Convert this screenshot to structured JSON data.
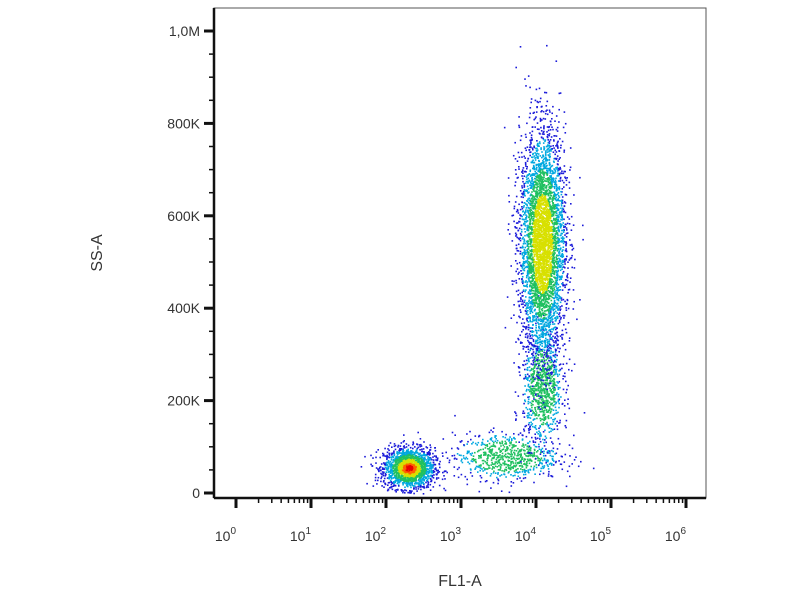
{
  "chart_data": {
    "type": "scatter",
    "title": "",
    "xlabel": "FL1-A",
    "ylabel": "SS-A",
    "x_scale": "log",
    "xlim": [
      0.3,
      1000000
    ],
    "ylim": [
      0,
      1000000
    ],
    "x_ticks": [
      {
        "base": "10",
        "exp": "0",
        "value": 1
      },
      {
        "base": "10",
        "exp": "1",
        "value": 10
      },
      {
        "base": "10",
        "exp": "2",
        "value": 100
      },
      {
        "base": "10",
        "exp": "3",
        "value": 1000
      },
      {
        "base": "10",
        "exp": "4",
        "value": 10000
      },
      {
        "base": "10",
        "exp": "5",
        "value": 100000
      },
      {
        "base": "10",
        "exp": "6",
        "value": 1000000
      }
    ],
    "y_ticks": [
      {
        "label": "0",
        "value": 0
      },
      {
        "label": "200K",
        "value": 200000
      },
      {
        "label": "400K",
        "value": 400000
      },
      {
        "label": "600K",
        "value": 600000
      },
      {
        "label": "800K",
        "value": 800000
      },
      {
        "label": "1,0M",
        "value": 1000000
      }
    ],
    "density_colors": [
      "#1a1ad9",
      "#00a8e0",
      "#20c060",
      "#d8e000",
      "#ff6000",
      "#e80000"
    ],
    "populations": [
      {
        "x_center": 200,
        "y_center": 55000,
        "x_spread_log": 0.17,
        "y_spread": 22000,
        "count": 1800
      },
      {
        "x_center": 4000,
        "y_center": 80000,
        "x_spread_log": 0.35,
        "y_spread": 25000,
        "count": 700
      },
      {
        "x_center": 12000,
        "y_center": 230000,
        "x_spread_log": 0.13,
        "y_spread": 60000,
        "count": 900
      },
      {
        "x_center": 12000,
        "y_center": 540000,
        "x_spread_log": 0.15,
        "y_spread": 120000,
        "count": 4200
      }
    ],
    "grid": false,
    "legend": "none"
  }
}
